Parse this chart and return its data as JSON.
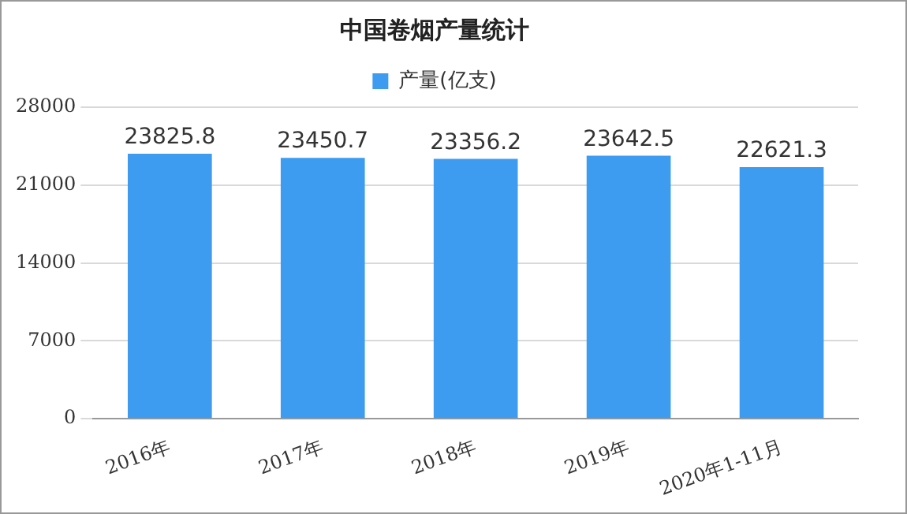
{
  "chart_data": {
    "type": "bar",
    "title": "中国卷烟产量统计",
    "categories": [
      "2016年",
      "2017年",
      "2018年",
      "2019年",
      "2020年1-11月"
    ],
    "series": [
      {
        "name": "产量(亿支)",
        "color": "#3d9cf0",
        "values": [
          23825.8,
          23450.7,
          23356.2,
          23642.5,
          22621.3
        ]
      }
    ],
    "ylim": [
      0,
      28000
    ],
    "yticks": [
      0,
      7000,
      14000,
      21000,
      28000
    ],
    "grid": "y",
    "legend": "top",
    "data_labels": true
  }
}
